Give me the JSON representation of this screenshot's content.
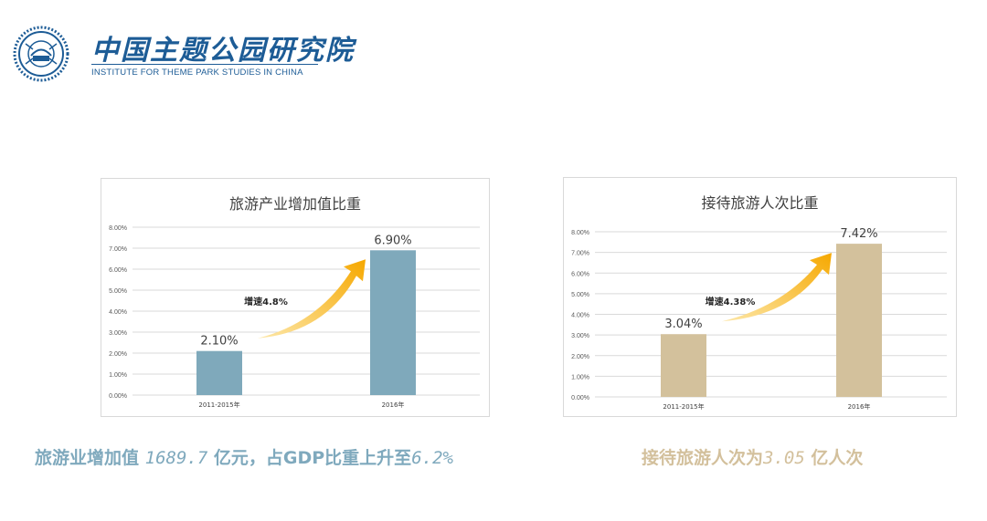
{
  "logo": {
    "cn_name": "中国主题公园研究院",
    "en_name": "INSTITUTE FOR THEME PARK STUDIES IN CHINA",
    "seal_icon": "institute-seal-icon",
    "color": "#1d5c96"
  },
  "chart_data": [
    {
      "type": "bar",
      "title": "旅游产业增加值比重",
      "categories": [
        "2011-2015年",
        "2016年"
      ],
      "values": [
        2.1,
        6.9
      ],
      "value_labels": [
        "2.10%",
        "6.90%"
      ],
      "ylim": [
        0,
        8
      ],
      "yticks": [
        "0.00%",
        "1.00%",
        "2.00%",
        "3.00%",
        "4.00%",
        "5.00%",
        "6.00%",
        "7.00%",
        "8.00%"
      ],
      "grid": true,
      "bar_color": "#7fa9bb",
      "annotation": "增速4.8%",
      "annotation_icon": "growth-arrow-icon"
    },
    {
      "type": "bar",
      "title": "接待旅游人次比重",
      "categories": [
        "2011-2015年",
        "2016年"
      ],
      "values": [
        3.04,
        7.42
      ],
      "value_labels": [
        "3.04%",
        "7.42%"
      ],
      "ylim": [
        0,
        8
      ],
      "yticks": [
        "0.00%",
        "1.00%",
        "2.00%",
        "3.00%",
        "4.00%",
        "5.00%",
        "6.00%",
        "7.00%",
        "8.00%"
      ],
      "grid": true,
      "bar_color": "#d3c19c",
      "annotation": "增速4.38%",
      "annotation_icon": "growth-arrow-icon"
    }
  ],
  "captions": {
    "left": {
      "prefix": "旅游业增加值 ",
      "number": "1689.7",
      "middle": " 亿元，占GDP比重上升至",
      "suffix": "6.2%",
      "color": "#7fa9bd"
    },
    "right": {
      "prefix": "接待旅游人次为",
      "number": "3.05",
      "suffix": " 亿人次",
      "color": "#d3c09c"
    }
  }
}
